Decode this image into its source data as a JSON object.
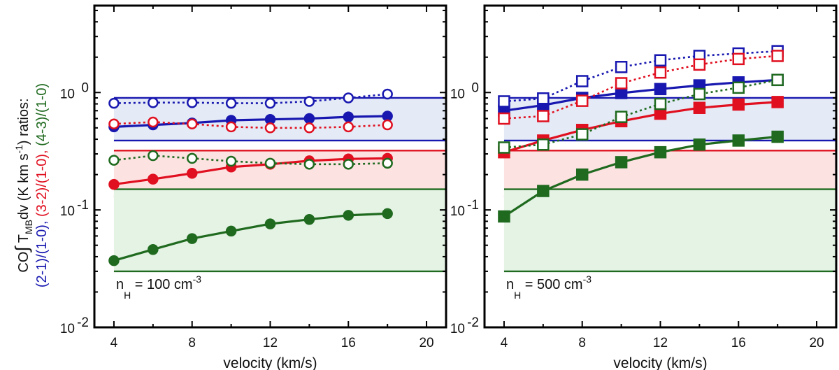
{
  "chart_data": {
    "type": "line",
    "shared": {
      "xlabel": "velocity (km/s)",
      "xticks": [
        4,
        8,
        12,
        16,
        20
      ],
      "xlim": [
        3,
        21
      ],
      "yscale": "log",
      "ylim": [
        0.01,
        5.5
      ],
      "yticks": [
        {
          "value": 0.01,
          "base": "10",
          "exp": "-2"
        },
        {
          "value": 0.1,
          "base": "10",
          "exp": "-1"
        },
        {
          "value": 1,
          "base": "10",
          "exp": "0"
        }
      ],
      "ylabel": {
        "prefix": "CO",
        "integral": "∫",
        "t": " T",
        "mb": "MB",
        "dv": "dv (K km s",
        "dv_exp": "-1",
        "dv_end": ") ratios:",
        "r21": "(2-1)/(1-0),",
        "r32": "(3-2)/(1-0),",
        "r43": "(4-3)/(1-0)"
      },
      "colors": {
        "r21": "#1818b0",
        "r32": "#e01020",
        "r43": "#1f6a1f"
      },
      "band_fill": {
        "r21": "#e4ebf6",
        "r32": "#fde2e2",
        "r43": "#e4f3e4"
      }
    },
    "panels": [
      {
        "annotation": {
          "n": "n",
          "sub": "H",
          "text": " = 100 cm",
          "exp": "-3"
        },
        "marker": "circle",
        "bands": [
          {
            "key": "r21",
            "range": [
              0.39,
              0.9
            ],
            "line_to": 21
          },
          {
            "key": "r32",
            "range": [
              0.13,
              0.32
            ],
            "line_to": 21
          },
          {
            "key": "r43",
            "range": [
              0.03,
              0.15
            ],
            "line_to": 21
          }
        ],
        "x": [
          4,
          6,
          8,
          10,
          12,
          14,
          16,
          18
        ],
        "series": [
          {
            "key": "r21",
            "filled": true,
            "values": [
              0.51,
              0.53,
              0.55,
              0.58,
              0.59,
              0.6,
              0.62,
              0.63
            ]
          },
          {
            "key": "r21",
            "filled": false,
            "values": [
              0.81,
              0.82,
              0.82,
              0.81,
              0.81,
              0.84,
              0.9,
              0.97
            ]
          },
          {
            "key": "r32",
            "filled": true,
            "values": [
              0.165,
              0.183,
              0.205,
              0.232,
              0.245,
              0.262,
              0.272,
              0.275
            ]
          },
          {
            "key": "r32",
            "filled": false,
            "values": [
              0.54,
              0.56,
              0.54,
              0.51,
              0.5,
              0.5,
              0.51,
              0.53
            ]
          },
          {
            "key": "r43",
            "filled": true,
            "values": [
              0.037,
              0.046,
              0.057,
              0.066,
              0.076,
              0.083,
              0.09,
              0.093
            ]
          },
          {
            "key": "r43",
            "filled": false,
            "values": [
              0.265,
              0.29,
              0.275,
              0.26,
              0.25,
              0.245,
              0.245,
              0.25
            ]
          }
        ]
      },
      {
        "annotation": {
          "n": "n",
          "sub": "H",
          "text": " = 500 cm",
          "exp": "-3"
        },
        "marker": "square",
        "bands": [
          {
            "key": "r21",
            "range": [
              0.39,
              0.9
            ],
            "line_to": 21
          },
          {
            "key": "r32",
            "range": [
              0.13,
              0.32
            ],
            "line_to": 21
          },
          {
            "key": "r43",
            "range": [
              0.03,
              0.15
            ],
            "line_to": 21
          }
        ],
        "x": [
          4,
          6,
          8,
          10,
          12,
          14,
          16,
          18
        ],
        "series": [
          {
            "key": "r21",
            "filled": true,
            "values": [
              0.7,
              0.78,
              0.9,
              0.99,
              1.07,
              1.15,
              1.22,
              1.28
            ]
          },
          {
            "key": "r21",
            "filled": false,
            "values": [
              0.84,
              0.89,
              1.25,
              1.65,
              1.88,
              2.05,
              2.15,
              2.25
            ]
          },
          {
            "key": "r32",
            "filled": true,
            "values": [
              0.31,
              0.39,
              0.48,
              0.57,
              0.66,
              0.74,
              0.79,
              0.83
            ]
          },
          {
            "key": "r32",
            "filled": false,
            "values": [
              0.6,
              0.63,
              0.85,
              1.2,
              1.48,
              1.73,
              1.93,
              2.05
            ]
          },
          {
            "key": "r43",
            "filled": true,
            "values": [
              0.088,
              0.145,
              0.2,
              0.255,
              0.31,
              0.36,
              0.39,
              0.42
            ]
          },
          {
            "key": "r43",
            "filled": false,
            "values": [
              0.34,
              0.36,
              0.44,
              0.62,
              0.8,
              0.97,
              1.1,
              1.28
            ]
          }
        ]
      }
    ]
  }
}
